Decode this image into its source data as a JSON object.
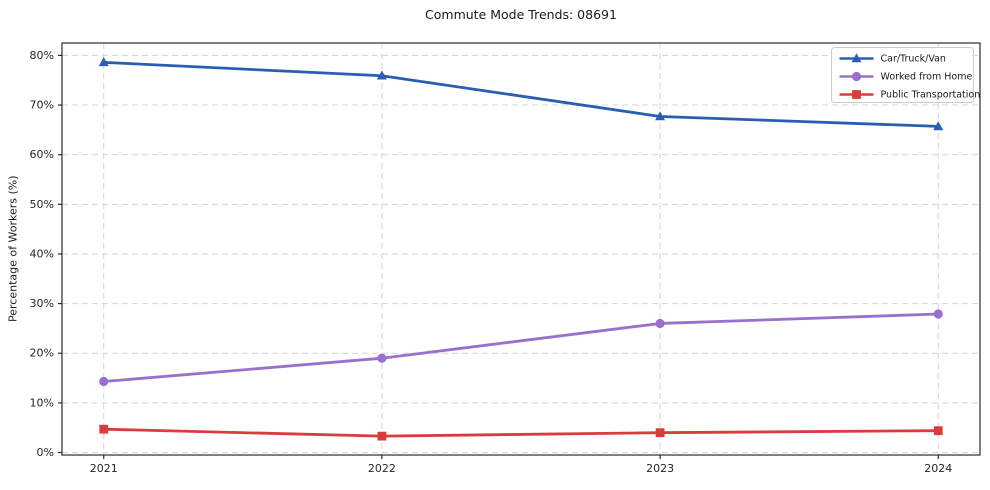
{
  "colors": {
    "background": "#ffffff",
    "grid": "#d4d4d4",
    "axis": "#2b2b2b",
    "tick_text": "#262626",
    "legend_border": "#cccccc",
    "legend_background": "#ffffff",
    "car_truck_van": "#2a5eb2",
    "worked_from_home": "#9a70cf",
    "public_transportation": "#d93c3c"
  },
  "chart_data": {
    "type": "line",
    "title": "Commute Mode Trends: 08691",
    "xlabel": "",
    "ylabel": "Percentage of Workers (%)",
    "x": [
      2021,
      2022,
      2023,
      2024
    ],
    "x_tick_labels": [
      "2021",
      "2022",
      "2023",
      "2024"
    ],
    "y_ticks": [
      0,
      10,
      20,
      30,
      40,
      50,
      60,
      70,
      80
    ],
    "y_tick_suffix": "%",
    "xlim": [
      2020.85,
      2024.15
    ],
    "ylim": [
      -0.5,
      82.5
    ],
    "grid": true,
    "grid_style": "dashed",
    "legend_position": "upper right",
    "series": [
      {
        "name": "Car/Truck/Van",
        "marker": "triangle",
        "color": "#2a5eb2",
        "values": [
          78.6,
          75.9,
          67.7,
          65.7
        ]
      },
      {
        "name": "Worked from Home",
        "marker": "circle",
        "color": "#9a70cf",
        "values": [
          14.3,
          19.0,
          26.0,
          27.9
        ]
      },
      {
        "name": "Public Transportation",
        "marker": "square",
        "color": "#d93c3c",
        "values": [
          4.7,
          3.3,
          4.0,
          4.4
        ]
      }
    ]
  }
}
